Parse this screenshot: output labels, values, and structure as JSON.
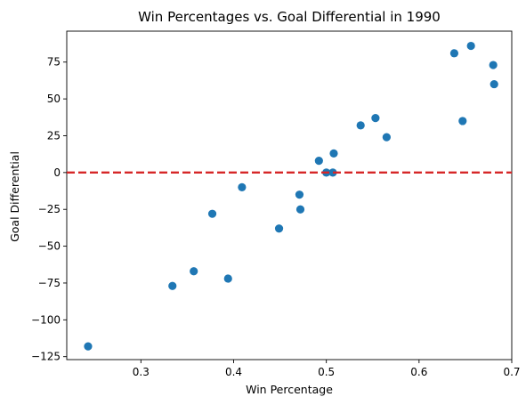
{
  "chart_data": {
    "type": "scatter",
    "title": "Win Percentages vs. Goal Differential in 1990",
    "xlabel": "Win Percentage",
    "ylabel": "Goal Differential",
    "xlim": [
      0.22,
      0.7
    ],
    "ylim": [
      -127,
      96
    ],
    "xticks": [
      0.3,
      0.4,
      0.5,
      0.6,
      0.7
    ],
    "xtick_labels": [
      "0.3",
      "0.4",
      "0.5",
      "0.6",
      "0.7"
    ],
    "yticks": [
      -125,
      -100,
      -75,
      -50,
      -25,
      0,
      25,
      50,
      75
    ],
    "ytick_labels": [
      "−125",
      "−100",
      "−75",
      "−50",
      "−25",
      "0",
      "25",
      "50",
      "75"
    ],
    "grid": false,
    "point_color": "#1f77b4",
    "reference_line": {
      "y": 0,
      "color": "#d62728",
      "style": "dashed"
    },
    "points": [
      {
        "x": 0.243,
        "y": -118
      },
      {
        "x": 0.334,
        "y": -77
      },
      {
        "x": 0.357,
        "y": -67
      },
      {
        "x": 0.377,
        "y": -28
      },
      {
        "x": 0.394,
        "y": -72
      },
      {
        "x": 0.409,
        "y": -10
      },
      {
        "x": 0.449,
        "y": -38
      },
      {
        "x": 0.471,
        "y": -15
      },
      {
        "x": 0.472,
        "y": -25
      },
      {
        "x": 0.492,
        "y": 8
      },
      {
        "x": 0.5,
        "y": 0
      },
      {
        "x": 0.507,
        "y": 0
      },
      {
        "x": 0.508,
        "y": 13
      },
      {
        "x": 0.537,
        "y": 32
      },
      {
        "x": 0.553,
        "y": 37
      },
      {
        "x": 0.565,
        "y": 24
      },
      {
        "x": 0.638,
        "y": 81
      },
      {
        "x": 0.647,
        "y": 35
      },
      {
        "x": 0.656,
        "y": 86
      },
      {
        "x": 0.68,
        "y": 73
      },
      {
        "x": 0.681,
        "y": 60
      }
    ]
  }
}
